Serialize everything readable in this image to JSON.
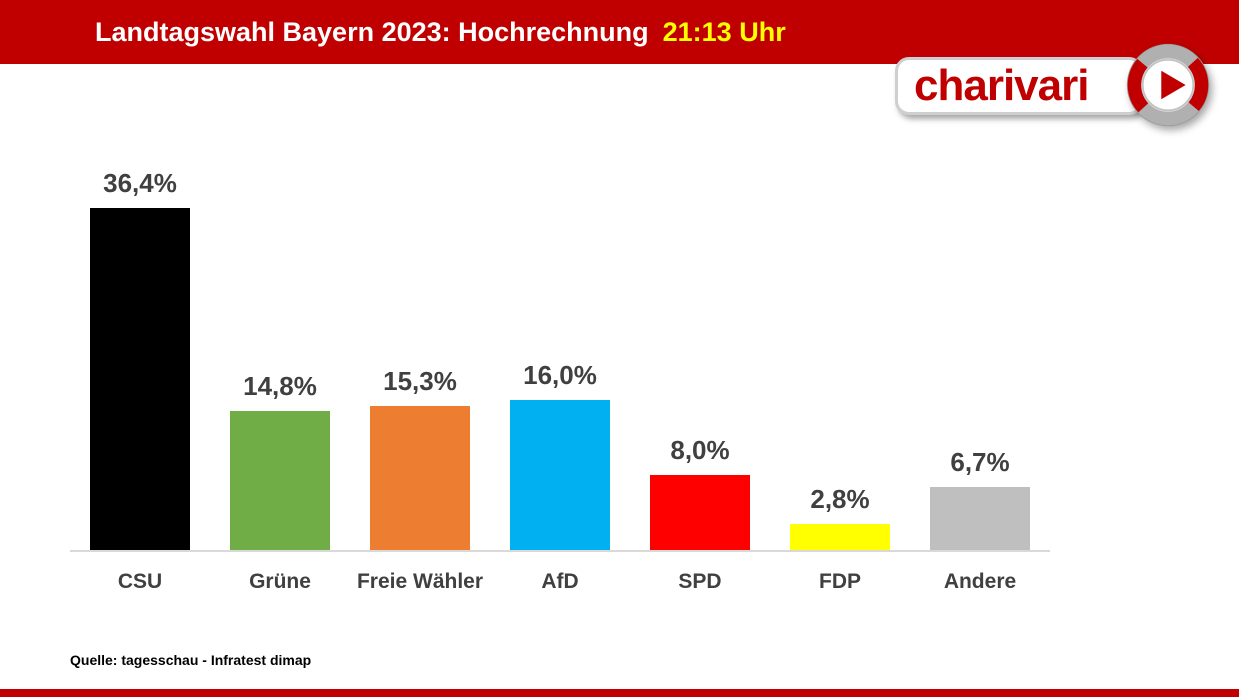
{
  "header": {
    "title": "Landtagswahl Bayern 2023: Hochrechnung",
    "time": "21:13 Uhr",
    "bg_color": "#C00000",
    "title_color": "#FFFFFF",
    "time_color": "#FFFF00"
  },
  "logo": {
    "text": "charivari",
    "text_color": "#C00000",
    "icon": "play-button-circle-icon"
  },
  "chart_data": {
    "type": "bar",
    "title": "Landtagswahl Bayern 2023: Hochrechnung 21:13 Uhr",
    "categories": [
      "CSU",
      "Grüne",
      "Freie Wähler",
      "AfD",
      "SPD",
      "FDP",
      "Andere"
    ],
    "values": [
      36.4,
      14.8,
      15.3,
      16.0,
      8.0,
      2.8,
      6.7
    ],
    "value_labels": [
      "36,4%",
      "14,8%",
      "15,3%",
      "16,0%",
      "8,0%",
      "2,8%",
      "6,7%"
    ],
    "colors": [
      "#000000",
      "#70AD47",
      "#ED7D31",
      "#00B0F0",
      "#FF0000",
      "#FFFF00",
      "#BFBFBF"
    ],
    "xlabel": "",
    "ylabel": "",
    "ylim": [
      0,
      40
    ],
    "grid": false,
    "legend": false,
    "label_color": "#404040"
  },
  "footer": {
    "source": "Quelle: tagesschau - Infratest dimap"
  }
}
